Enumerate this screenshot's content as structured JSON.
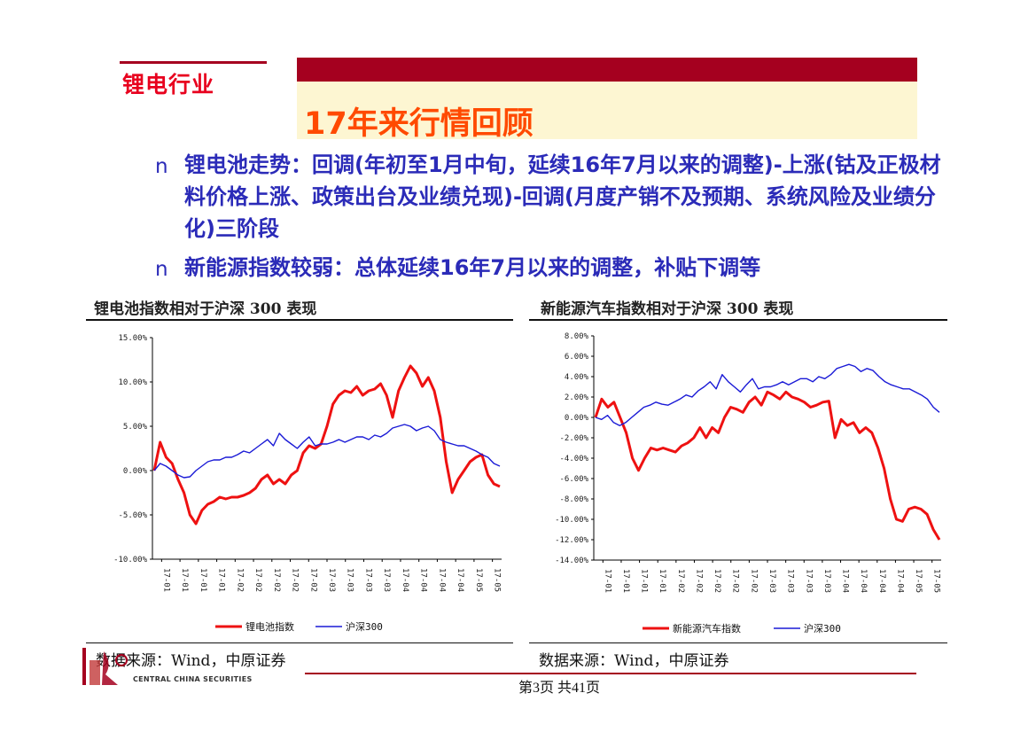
{
  "header": {
    "category": "锂电行业",
    "title": "17年来行情回顾"
  },
  "bullets": [
    {
      "marker": "n",
      "text": "锂电池走势：回调(年初至1月中旬，延续16年7月以来的调整)-上涨(钴及正极材料价格上涨、政策出台及业绩兑现)-回调(月度产销不及预期、系统风险及业绩分化)三阶段"
    },
    {
      "marker": "n",
      "text": "新能源指数较弱：总体延续16年7月以来的调整，补贴下调等"
    }
  ],
  "colors": {
    "brand_dark_red": "#a5001f",
    "title_orange": "#ff4a00",
    "bullet_blue": "#2b2bb8",
    "series_red": "#ee1111",
    "series_blue": "#1a1ad6"
  },
  "chart_data": [
    {
      "type": "line",
      "title": "锂电池指数相对于沪深 300 表现",
      "x_tick_labels": [
        "17-01",
        "17-01",
        "17-01",
        "17-01",
        "17-02",
        "17-02",
        "17-02",
        "17-02",
        "17-02",
        "17-03",
        "17-03",
        "17-03",
        "17-03",
        "17-04",
        "17-04",
        "17-04",
        "17-04",
        "17-05",
        "17-05"
      ],
      "y_tick_labels": [
        "15.00%",
        "10.00%",
        "5.00%",
        "0.00%",
        "-5.00%",
        "-10.00%"
      ],
      "ylim": [
        -10,
        15
      ],
      "source": "数据来源：Wind，中原证券",
      "series": [
        {
          "name": "锂电池指数",
          "color": "#ee1111",
          "values": [
            0,
            3.2,
            1.5,
            0.8,
            -1,
            -2.5,
            -5,
            -6,
            -4.5,
            -3.8,
            -3.5,
            -3,
            -3.2,
            -3,
            -3,
            -2.8,
            -2.5,
            -2,
            -1,
            -0.5,
            -1.5,
            -1,
            -1.5,
            -0.5,
            0,
            2,
            2.8,
            2.5,
            3,
            5,
            7.5,
            8.5,
            9,
            8.8,
            9.5,
            8.5,
            9,
            9.2,
            9.8,
            8.5,
            6,
            9,
            10.5,
            11.8,
            11,
            9.5,
            10.5,
            9,
            6,
            1,
            -2.5,
            -1,
            0,
            1,
            1.5,
            1.8,
            -0.5,
            -1.5,
            -1.8
          ]
        },
        {
          "name": "沪深300",
          "color": "#1a1ad6",
          "values": [
            0,
            0.8,
            0.5,
            0,
            -0.5,
            -0.8,
            -0.7,
            0,
            0.5,
            1,
            1.2,
            1.2,
            1.5,
            1.5,
            1.8,
            2.2,
            2,
            2.5,
            3,
            3.5,
            2.8,
            4.2,
            3.5,
            3,
            2.5,
            3.2,
            3.8,
            2.8,
            3,
            3,
            3.2,
            3.5,
            3.2,
            3.5,
            3.8,
            3.8,
            3.5,
            4,
            3.8,
            4.2,
            4.8,
            5,
            5.2,
            5,
            4.5,
            4.8,
            5,
            4.5,
            3.5,
            3.2,
            3,
            2.8,
            2.8,
            2.5,
            2.2,
            1.8,
            1.5,
            0.8,
            0.5
          ]
        }
      ]
    },
    {
      "type": "line",
      "title": "新能源汽车指数相对于沪深 300 表现",
      "x_tick_labels": [
        "17-01",
        "17-01",
        "17-01",
        "17-01",
        "17-02",
        "17-02",
        "17-02",
        "17-02",
        "17-02",
        "17-03",
        "17-03",
        "17-03",
        "17-03",
        "17-04",
        "17-04",
        "17-04",
        "17-04",
        "17-05",
        "17-05"
      ],
      "y_tick_labels": [
        "8.00%",
        "6.00%",
        "4.00%",
        "2.00%",
        "0.00%",
        "-2.00%",
        "-4.00%",
        "-6.00%",
        "-8.00%",
        "-10.00%",
        "-12.00%",
        "-14.00%"
      ],
      "ylim": [
        -14,
        8
      ],
      "source": "数据来源：Wind，中原证券",
      "series": [
        {
          "name": "新能源汽车指数",
          "color": "#ee1111",
          "values": [
            0,
            1.8,
            1,
            1.5,
            0,
            -1.5,
            -4,
            -5.2,
            -4,
            -3,
            -3.2,
            -3,
            -3.2,
            -3.4,
            -2.8,
            -2.5,
            -2,
            -1,
            -2,
            -1,
            -1.5,
            0,
            1,
            0.8,
            0.5,
            1.5,
            2,
            1.2,
            2.5,
            2.2,
            1.8,
            2.5,
            2,
            1.8,
            1.5,
            1,
            1.2,
            1.5,
            1.6,
            -2,
            -0.2,
            -0.8,
            -0.5,
            -1.5,
            -1,
            -1.5,
            -3,
            -5,
            -8,
            -10,
            -10.2,
            -9,
            -8.8,
            -9,
            -9.5,
            -11,
            -12
          ]
        },
        {
          "name": "沪深300",
          "color": "#1a1ad6",
          "values": [
            0,
            -0.2,
            0.2,
            -0.5,
            -0.8,
            -0.5,
            0,
            0.5,
            1,
            1.2,
            1.5,
            1.3,
            1.2,
            1.5,
            1.8,
            2.2,
            2,
            2.6,
            3,
            3.5,
            2.8,
            4.2,
            3.5,
            3,
            2.5,
            3.2,
            3.8,
            2.8,
            3,
            3,
            3.2,
            3.5,
            3.2,
            3.5,
            3.8,
            3.8,
            3.5,
            4,
            3.8,
            4.2,
            4.8,
            5,
            5.2,
            5,
            4.5,
            4.8,
            4.6,
            4,
            3.5,
            3.2,
            3,
            2.8,
            2.8,
            2.5,
            2.2,
            1.8,
            1,
            0.5
          ]
        }
      ]
    }
  ],
  "footer": {
    "logo_text_en": "CENTRAL CHINA SECURITIES",
    "page_label": "第3页   共41页"
  }
}
